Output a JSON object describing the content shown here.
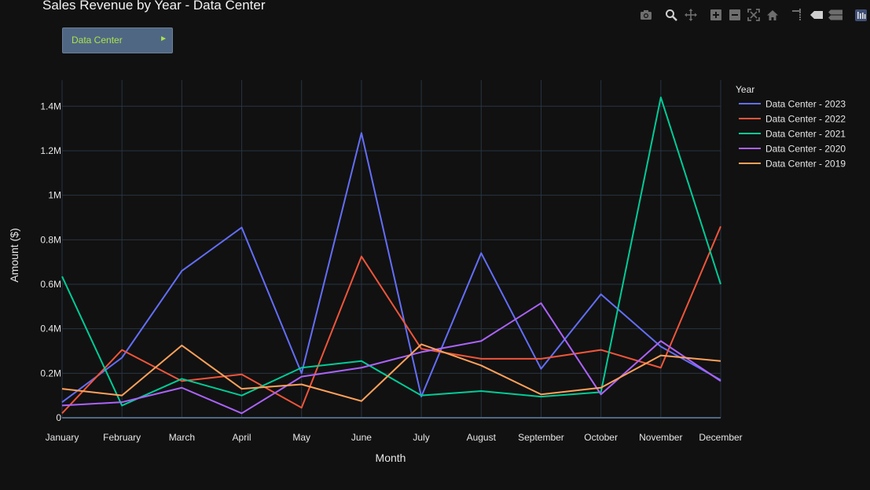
{
  "chart_data": {
    "type": "line",
    "title": "Sales Revenue by Year - Data Center",
    "xlabel": "Month",
    "ylabel": "Amount ($)",
    "ylim": [
      0,
      1.5
    ],
    "categories": [
      "January",
      "February",
      "March",
      "April",
      "May",
      "June",
      "July",
      "August",
      "September",
      "October",
      "November",
      "December"
    ],
    "y_ticks": [
      {
        "value": 0,
        "label": "0"
      },
      {
        "value": 0.2,
        "label": "0.2M"
      },
      {
        "value": 0.4,
        "label": "0.4M"
      },
      {
        "value": 0.6,
        "label": "0.6M"
      },
      {
        "value": 0.8,
        "label": "0.8M"
      },
      {
        "value": 1.0,
        "label": "1M"
      },
      {
        "value": 1.2,
        "label": "1.2M"
      },
      {
        "value": 1.4,
        "label": "1.4M"
      }
    ],
    "y_unit": "millions of dollars",
    "grid": true,
    "legend_title": "Year",
    "legend_position": "right",
    "series": [
      {
        "name": "Data Center - 2023",
        "color": "#636efa",
        "values": [
          0.07,
          0.27,
          0.66,
          0.855,
          0.2,
          1.28,
          0.095,
          0.74,
          0.22,
          0.555,
          0.32,
          0.17
        ]
      },
      {
        "name": "Data Center - 2022",
        "color": "#ef553b",
        "values": [
          0.02,
          0.305,
          0.165,
          0.195,
          0.045,
          0.725,
          0.31,
          0.265,
          0.265,
          0.305,
          0.225,
          0.86
        ]
      },
      {
        "name": "Data Center - 2021",
        "color": "#00cc96",
        "values": [
          0.635,
          0.055,
          0.175,
          0.1,
          0.225,
          0.255,
          0.1,
          0.12,
          0.095,
          0.115,
          1.44,
          0.6
        ]
      },
      {
        "name": "Data Center - 2020",
        "color": "#ab63fa",
        "values": [
          0.055,
          0.07,
          0.135,
          0.02,
          0.185,
          0.225,
          0.295,
          0.345,
          0.515,
          0.105,
          0.345,
          0.165
        ]
      },
      {
        "name": "Data Center - 2019",
        "color": "#ffa15a",
        "values": [
          0.13,
          0.1,
          0.325,
          0.13,
          0.15,
          0.075,
          0.33,
          0.235,
          0.105,
          0.135,
          0.28,
          0.255
        ]
      }
    ]
  },
  "dropdown": {
    "label": "Data Center",
    "arrow": "►"
  },
  "modebar": {
    "icons": [
      "camera-icon",
      "zoom-icon",
      "pan-icon",
      "zoom-in-icon",
      "zoom-out-icon",
      "autoscale-icon",
      "reset-axes-icon",
      "spike-lines-icon",
      "hover-closest-icon",
      "hover-compare-icon",
      "plotly-logo-icon"
    ]
  }
}
